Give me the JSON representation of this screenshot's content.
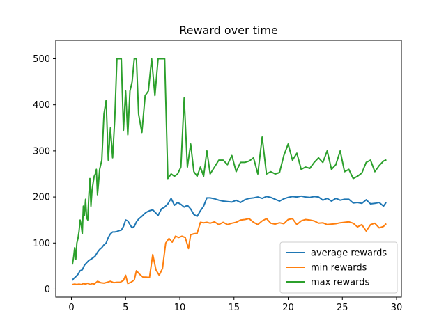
{
  "chart_data": {
    "type": "line",
    "title": "Reward over time",
    "xlabel": "",
    "ylabel": "",
    "xlim": [
      -1.45,
      30.45
    ],
    "ylim": [
      -17.4,
      540
    ],
    "xticks": [
      0,
      5,
      10,
      15,
      20,
      25,
      30
    ],
    "yticks": [
      0,
      100,
      200,
      300,
      400,
      500
    ],
    "grid": false,
    "legend_position": "lower-right",
    "series": [
      {
        "name": "average rewards",
        "color": "#1f77b4",
        "x": [
          0.1,
          0.2,
          0.4,
          0.6,
          0.8,
          1.0,
          1.2,
          1.4,
          1.6,
          1.8,
          2.0,
          2.2,
          2.4,
          2.6,
          2.8,
          3.0,
          3.2,
          3.4,
          3.6,
          3.8,
          4.0,
          4.2,
          4.4,
          4.6,
          4.8,
          5.0,
          5.2,
          5.4,
          5.6,
          5.8,
          6.0,
          6.2,
          6.5,
          6.8,
          7.0,
          7.2,
          7.5,
          7.8,
          8.0,
          8.3,
          8.6,
          8.9,
          9.2,
          9.5,
          9.8,
          10.1,
          10.4,
          10.7,
          11.0,
          11.3,
          11.6,
          11.9,
          12.2,
          12.5,
          12.8,
          13.2,
          13.6,
          14.0,
          14.4,
          14.8,
          15.2,
          15.6,
          16.0,
          16.4,
          16.8,
          17.2,
          17.6,
          18.0,
          18.4,
          18.8,
          19.2,
          19.6,
          20.0,
          20.4,
          20.8,
          21.2,
          21.6,
          22.0,
          22.4,
          22.8,
          23.2,
          23.6,
          24.0,
          24.4,
          24.8,
          25.2,
          25.6,
          26.0,
          26.4,
          26.8,
          27.2,
          27.6,
          28.0,
          28.4,
          28.8,
          29.0
        ],
        "values": [
          20,
          23,
          27,
          32,
          40,
          42,
          52,
          57,
          62,
          65,
          68,
          72,
          80,
          86,
          90,
          96,
          100,
          112,
          120,
          124,
          124,
          125,
          127,
          128,
          136,
          150,
          148,
          140,
          133,
          136,
          146,
          152,
          158,
          165,
          168,
          170,
          172,
          165,
          160,
          174,
          178,
          185,
          197,
          182,
          188,
          184,
          178,
          182,
          174,
          162,
          158,
          170,
          180,
          198,
          198,
          196,
          193,
          191,
          190,
          189,
          193,
          188,
          194,
          197,
          198,
          200,
          197,
          201,
          199,
          195,
          191,
          196,
          199,
          201,
          200,
          202,
          200,
          199,
          201,
          200,
          193,
          197,
          191,
          197,
          193,
          195,
          195,
          187,
          188,
          186,
          194,
          185,
          186,
          188,
          180,
          187
        ]
      },
      {
        "name": "min rewards",
        "color": "#ff7f0e",
        "x": [
          0.1,
          0.3,
          0.5,
          0.7,
          0.9,
          1.1,
          1.3,
          1.5,
          1.7,
          1.9,
          2.1,
          2.4,
          2.7,
          3.0,
          3.3,
          3.6,
          3.9,
          4.2,
          4.5,
          4.8,
          5.0,
          5.2,
          5.5,
          5.8,
          6.0,
          6.3,
          6.6,
          6.9,
          7.2,
          7.5,
          7.8,
          8.1,
          8.4,
          8.7,
          9.0,
          9.3,
          9.6,
          9.9,
          10.2,
          10.5,
          10.8,
          11.0,
          11.3,
          11.6,
          11.9,
          12.2,
          12.5,
          12.8,
          13.2,
          13.6,
          14.0,
          14.4,
          14.8,
          15.2,
          15.6,
          16.0,
          16.4,
          16.8,
          17.2,
          17.6,
          18.0,
          18.4,
          18.8,
          19.2,
          19.6,
          20.0,
          20.4,
          20.8,
          21.2,
          21.6,
          22.0,
          22.4,
          22.8,
          23.2,
          23.6,
          24.0,
          24.4,
          24.8,
          25.2,
          25.6,
          26.0,
          26.4,
          26.8,
          27.2,
          27.6,
          28.0,
          28.4,
          28.8,
          29.0
        ],
        "values": [
          10,
          11,
          10,
          11,
          10,
          12,
          11,
          13,
          10,
          12,
          11,
          17,
          14,
          13,
          15,
          17,
          14,
          15,
          15,
          19,
          30,
          12,
          15,
          20,
          40,
          32,
          26,
          26,
          25,
          75,
          42,
          30,
          45,
          100,
          110,
          102,
          115,
          112,
          115,
          112,
          88,
          118,
          120,
          121,
          145,
          144,
          145,
          143,
          146,
          140,
          145,
          140,
          143,
          145,
          150,
          151,
          153,
          145,
          140,
          148,
          153,
          143,
          141,
          144,
          142,
          151,
          153,
          140,
          148,
          151,
          150,
          148,
          143,
          144,
          140,
          141,
          142,
          144,
          145,
          146,
          143,
          135,
          140,
          126,
          140,
          143,
          133,
          136,
          141
        ]
      },
      {
        "name": "max rewards",
        "color": "#2ca02c",
        "x": [
          0.1,
          0.2,
          0.3,
          0.4,
          0.5,
          0.6,
          0.7,
          0.8,
          0.9,
          1.0,
          1.1,
          1.2,
          1.3,
          1.4,
          1.5,
          1.6,
          1.7,
          1.8,
          1.9,
          2.0,
          2.1,
          2.2,
          2.3,
          2.4,
          2.5,
          2.6,
          2.8,
          3.0,
          3.2,
          3.4,
          3.6,
          3.8,
          4.0,
          4.2,
          4.4,
          4.6,
          4.8,
          5.0,
          5.2,
          5.4,
          5.6,
          5.8,
          6.0,
          6.2,
          6.5,
          6.8,
          7.1,
          7.4,
          7.7,
          8.0,
          8.3,
          8.6,
          8.9,
          9.2,
          9.5,
          9.8,
          10.1,
          10.4,
          10.7,
          11.0,
          11.3,
          11.6,
          11.9,
          12.2,
          12.5,
          12.8,
          13.2,
          13.6,
          14.0,
          14.4,
          14.8,
          15.2,
          15.6,
          16.0,
          16.4,
          16.8,
          17.2,
          17.6,
          18.0,
          18.4,
          18.8,
          19.2,
          19.6,
          20.0,
          20.4,
          20.8,
          21.2,
          21.6,
          22.0,
          22.4,
          22.8,
          23.2,
          23.6,
          24.0,
          24.4,
          24.8,
          25.2,
          25.6,
          26.0,
          26.4,
          26.8,
          27.2,
          27.6,
          28.0,
          28.4,
          28.8,
          29.0
        ],
        "values": [
          55,
          70,
          90,
          65,
          100,
          110,
          125,
          150,
          140,
          120,
          180,
          160,
          195,
          155,
          150,
          200,
          240,
          180,
          215,
          230,
          245,
          250,
          260,
          205,
          230,
          260,
          280,
          380,
          410,
          280,
          350,
          285,
          370,
          500,
          500,
          500,
          345,
          430,
          335,
          430,
          450,
          500,
          500,
          380,
          340,
          420,
          430,
          500,
          420,
          500,
          500,
          500,
          240,
          250,
          245,
          250,
          265,
          415,
          265,
          315,
          255,
          245,
          265,
          245,
          300,
          250,
          265,
          280,
          280,
          270,
          290,
          255,
          275,
          275,
          278,
          285,
          250,
          330,
          250,
          255,
          250,
          253,
          290,
          315,
          280,
          295,
          260,
          265,
          262,
          275,
          285,
          275,
          300,
          260,
          270,
          300,
          255,
          260,
          240,
          245,
          252,
          275,
          280,
          255,
          268,
          278,
          280
        ]
      }
    ]
  }
}
